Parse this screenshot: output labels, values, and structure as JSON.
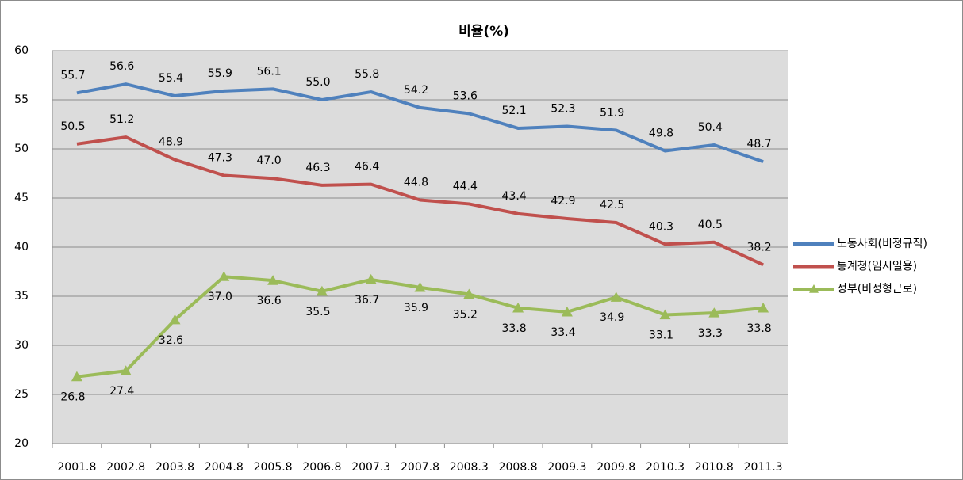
{
  "chart_data": {
    "type": "line",
    "title": "비율(%)",
    "categories": [
      "2001.8",
      "2002.8",
      "2003.8",
      "2004.8",
      "2005.8",
      "2006.8",
      "2007.3",
      "2007.8",
      "2008.3",
      "2008.8",
      "2009.3",
      "2009.8",
      "2010.3",
      "2010.8",
      "2011.3"
    ],
    "series": [
      {
        "name": "노동사회(비정규직)",
        "color": "#4f81bd",
        "marker": "none",
        "values": [
          55.7,
          56.6,
          55.4,
          55.9,
          56.1,
          55.0,
          55.8,
          54.2,
          53.6,
          52.1,
          52.3,
          51.9,
          49.8,
          50.4,
          48.7
        ],
        "value_labels": [
          "55.7",
          "56.6",
          "55.4",
          "55.9",
          "56.1",
          "55.0",
          "55.8",
          "54.2",
          "53.6",
          "52.1",
          "52.3",
          "51.9",
          "49.8",
          "50.4",
          "48.7"
        ]
      },
      {
        "name": "통계청(임시일용)",
        "color": "#c0504d",
        "marker": "none",
        "values": [
          50.5,
          51.2,
          48.9,
          47.3,
          47.0,
          46.3,
          46.4,
          44.8,
          44.4,
          43.4,
          42.9,
          42.5,
          40.3,
          40.5,
          38.2
        ],
        "value_labels": [
          "50.5",
          "51.2",
          "48.9",
          "47.3",
          "47.0",
          "46.3",
          "46.4",
          "44.8",
          "44.4",
          "43.4",
          "42.9",
          "42.5",
          "40.3",
          "40.5",
          "38.2"
        ]
      },
      {
        "name": "정부(비정형근로)",
        "color": "#9bbb59",
        "marker": "triangle",
        "values": [
          26.8,
          27.4,
          32.6,
          37.0,
          36.6,
          35.5,
          36.7,
          35.9,
          35.2,
          33.8,
          33.4,
          34.9,
          33.1,
          33.3,
          33.8
        ],
        "value_labels": [
          "26.8",
          "27.4",
          "32.6",
          "37.0",
          "36.6",
          "35.5",
          "36.7",
          "35.9",
          "35.2",
          "33.8",
          "33.4",
          "34.9",
          "33.1",
          "33.3",
          "33.8"
        ]
      }
    ],
    "ylim": [
      20,
      60
    ],
    "yticks": [
      20,
      25,
      30,
      35,
      40,
      45,
      50,
      55,
      60
    ],
    "grid": true,
    "legend": "right"
  }
}
